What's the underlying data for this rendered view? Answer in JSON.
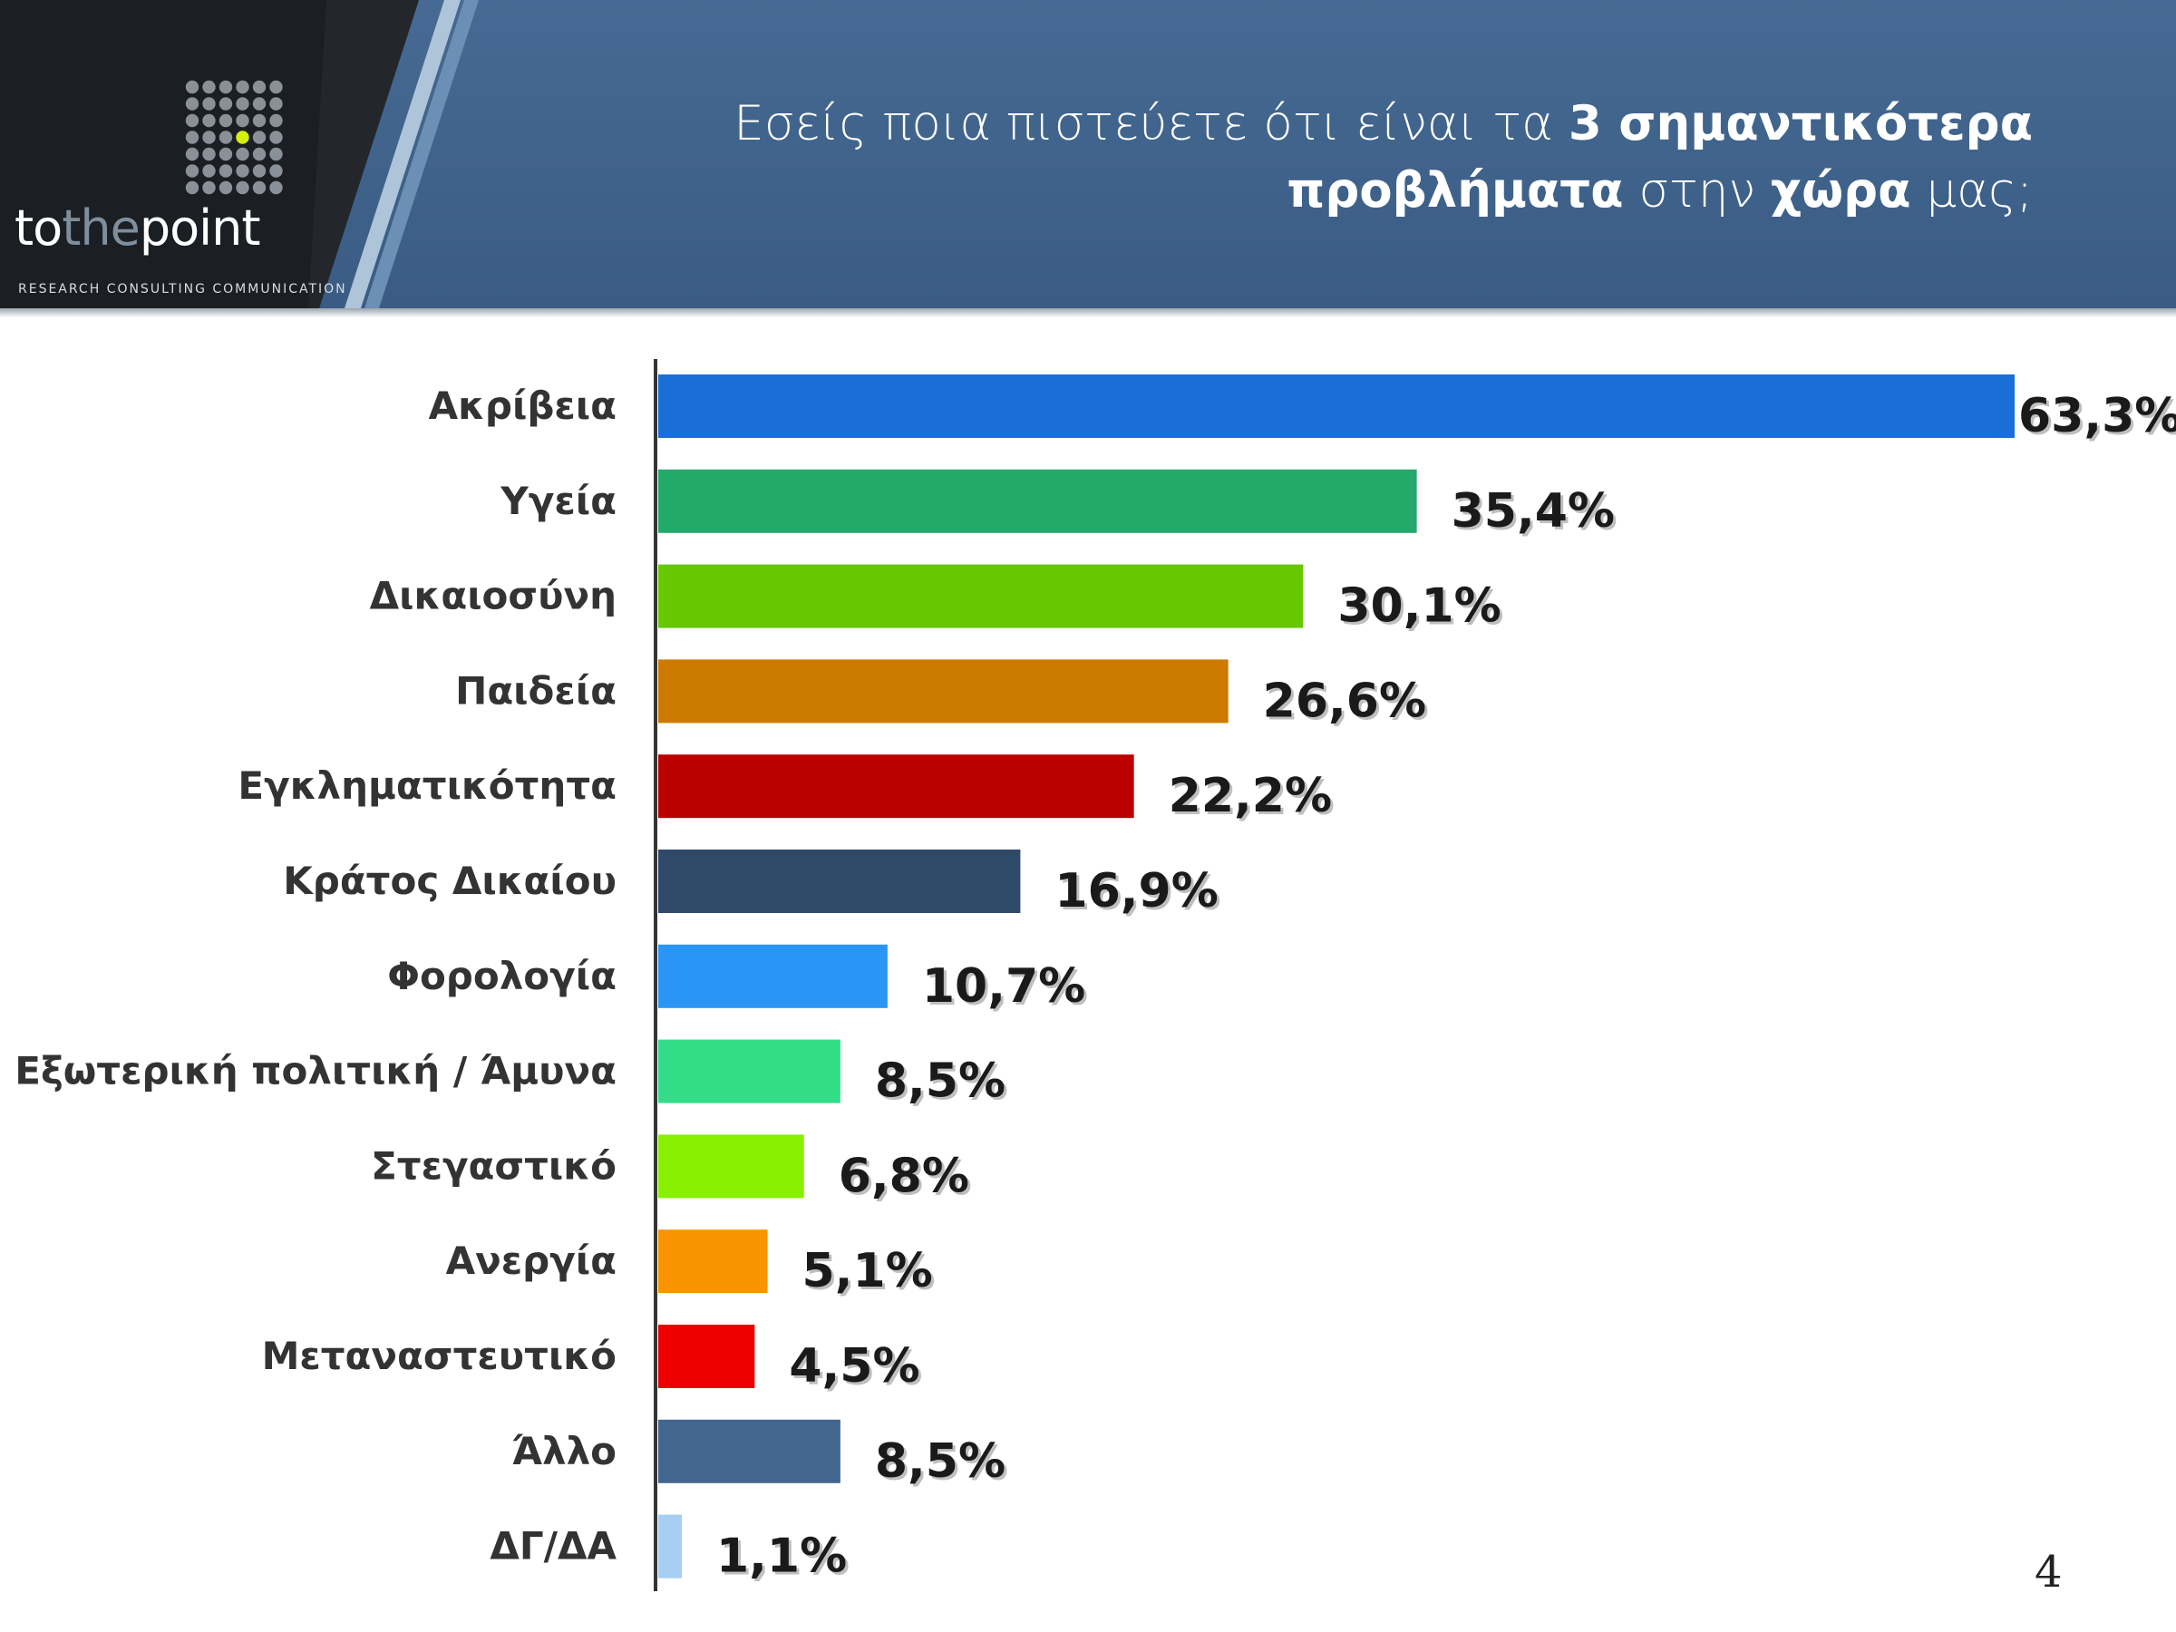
{
  "header": {
    "logo": {
      "part1": "to",
      "part2": "the",
      "part3": "point",
      "tagline": "RESEARCH CONSULTING COMMUNICATION"
    },
    "title": {
      "part1": "Εσείς ποια πιστεύετε ότι είναι τα ",
      "part2": "3 σημαντικότερα προβλήματα",
      "part3": " στην ",
      "part4": "χώρα",
      "part5": " μας;"
    },
    "colors": {
      "band": "#3f5f85",
      "logo_panel": "#1b1e22",
      "accent_dot": "#d6ee0c"
    }
  },
  "chart_data": {
    "type": "bar",
    "orientation": "horizontal",
    "categories": [
      "Ακρίβεια",
      "Υγεία",
      "Δικαιοσύνη",
      "Παιδεία",
      "Εγκληματικότητα",
      "Κράτος Δικαίου",
      "Φορολογία",
      "Εξωτερική πολιτική / Άμυνα",
      "Στεγαστικό",
      "Ανεργία",
      "Μεταναστευτικό",
      "Άλλο",
      "ΔΓ/ΔΑ"
    ],
    "values": [
      63.3,
      35.4,
      30.1,
      26.6,
      22.2,
      16.9,
      10.7,
      8.5,
      6.8,
      5.1,
      4.5,
      8.5,
      1.1
    ],
    "labels": [
      "63,3%",
      "35,4%",
      "30,1%",
      "26,6%",
      "22,2%",
      "16,9%",
      "10,7%",
      "8,5%",
      "6,8%",
      "5,1%",
      "4,5%",
      "8,5%",
      "1,1%"
    ],
    "colors": [
      "#1a6fd6",
      "#23a96a",
      "#66c800",
      "#cc7a00",
      "#bb0000",
      "#2e4a68",
      "#2b95f6",
      "#33dd88",
      "#88f000",
      "#f79400",
      "#ee0000",
      "#42668e",
      "#a8cdf2"
    ],
    "xlim": [
      0,
      63.3
    ],
    "grid": false
  },
  "page_number": "4"
}
